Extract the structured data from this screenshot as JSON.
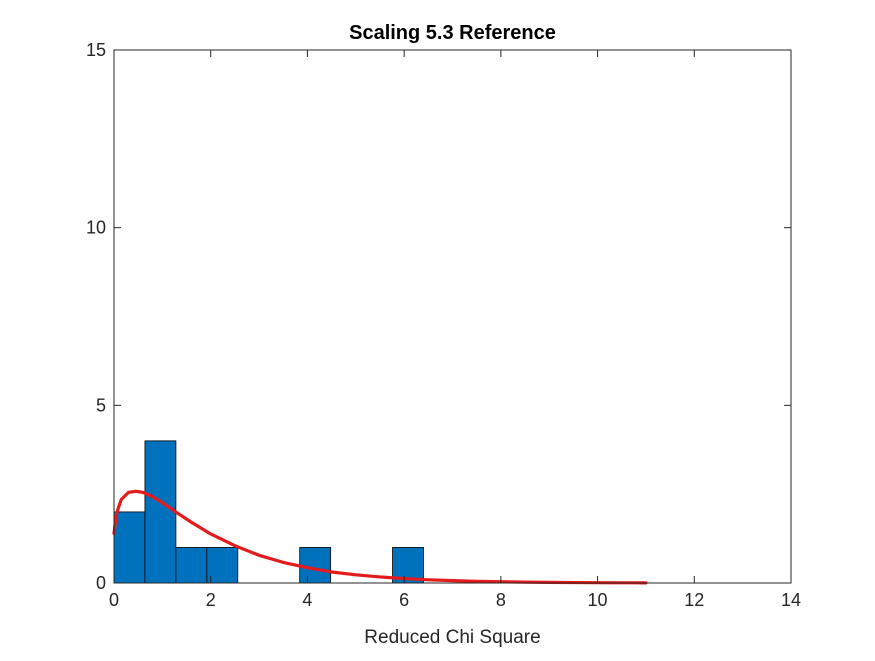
{
  "chart_data": {
    "type": "bar",
    "title": "Scaling 5.3 Reference",
    "xlabel": "Reduced Chi Square",
    "ylabel": "",
    "xlim": [
      0,
      14
    ],
    "ylim": [
      0,
      15
    ],
    "x_ticks": [
      "0",
      "2",
      "4",
      "6",
      "8",
      "10",
      "12",
      "14"
    ],
    "y_ticks": [
      "0",
      "5",
      "10",
      "15"
    ],
    "grid": false,
    "legend": "none",
    "histogram": {
      "name": "",
      "color": "#0072BD",
      "bins": [
        {
          "x0": 0.0,
          "x1": 0.64,
          "count": 2
        },
        {
          "x0": 0.64,
          "x1": 1.28,
          "count": 4
        },
        {
          "x0": 1.28,
          "x1": 1.92,
          "count": 1
        },
        {
          "x0": 1.92,
          "x1": 2.56,
          "count": 1
        },
        {
          "x0": 3.84,
          "x1": 4.48,
          "count": 1
        },
        {
          "x0": 5.76,
          "x1": 6.4,
          "count": 1
        }
      ]
    },
    "fit_curve": {
      "name": "",
      "color": "#E41A1C",
      "x": [
        0.0,
        0.05,
        0.15,
        0.3,
        0.45,
        0.6,
        0.8,
        1.0,
        1.3,
        1.6,
        2.0,
        2.5,
        3.0,
        3.5,
        4.0,
        4.5,
        5.0,
        5.5,
        6.0,
        6.5,
        7.0,
        7.5,
        8.0,
        8.5,
        9.0,
        9.5,
        10.0,
        10.5,
        11.0
      ],
      "y": [
        1.4,
        1.95,
        2.35,
        2.55,
        2.58,
        2.55,
        2.43,
        2.26,
        1.98,
        1.71,
        1.38,
        1.05,
        0.78,
        0.58,
        0.43,
        0.31,
        0.23,
        0.17,
        0.125,
        0.09,
        0.066,
        0.048,
        0.035,
        0.025,
        0.018,
        0.013,
        0.009,
        0.006,
        0.004
      ]
    }
  }
}
